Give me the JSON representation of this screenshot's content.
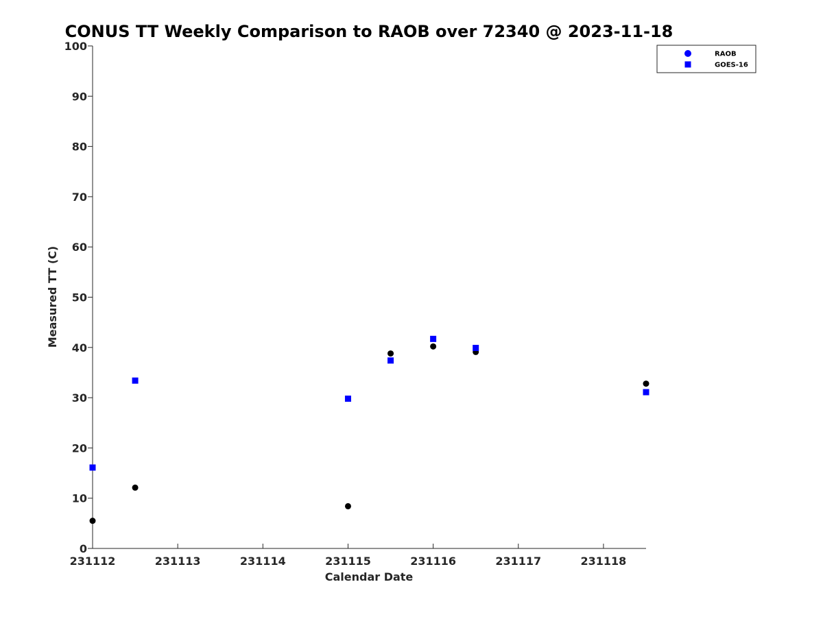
{
  "chart_data": {
    "type": "scatter",
    "title": "CONUS TT Weekly Comparison to RAOB over 72340 @ 2023-11-18",
    "xlabel": "Calendar Date",
    "ylabel": "Measured TT (C)",
    "xlim": [
      0,
      6.5
    ],
    "ylim": [
      0,
      100
    ],
    "x_ticks": [
      0,
      1,
      2,
      3,
      4,
      5,
      6
    ],
    "x_tick_labels": [
      "231112",
      "231113",
      "231114",
      "231115",
      "231116",
      "231117",
      "231118"
    ],
    "y_ticks": [
      0,
      10,
      20,
      30,
      40,
      50,
      60,
      70,
      80,
      90,
      100
    ],
    "y_tick_labels": [
      "0",
      "10",
      "20",
      "30",
      "40",
      "50",
      "60",
      "70",
      "80",
      "90",
      "100"
    ],
    "x_units": "days since 2023-11-12 00Z",
    "grid": false,
    "legend_position": "top-right",
    "series": [
      {
        "name": "RAOB",
        "marker": "circle",
        "color": "#000000",
        "legend_color": "#0000ff",
        "x": [
          0,
          0.5,
          3,
          3.5,
          4,
          4.5,
          6.5
        ],
        "y": [
          5.5,
          12.1,
          8.4,
          38.8,
          40.2,
          39.1,
          32.8
        ]
      },
      {
        "name": "GOES-16",
        "marker": "square",
        "color": "#0000ff",
        "x": [
          0,
          0.5,
          3,
          3.5,
          4,
          4.5,
          6.5
        ],
        "y": [
          16.1,
          33.4,
          29.8,
          37.4,
          41.7,
          39.9,
          31.1
        ]
      }
    ]
  }
}
